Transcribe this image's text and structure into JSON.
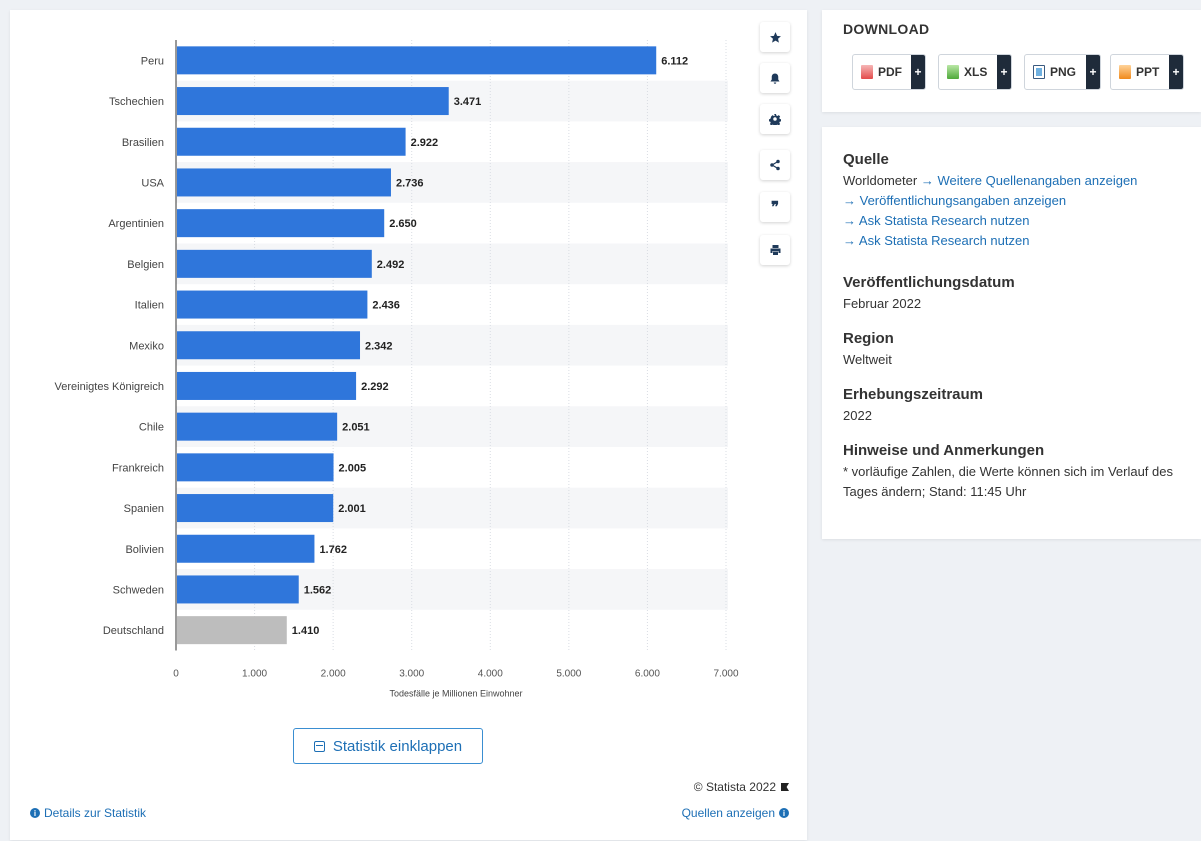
{
  "chart_data": {
    "type": "bar",
    "orientation": "horizontal",
    "categories": [
      "Peru",
      "Tschechien",
      "Brasilien",
      "USA",
      "Argentinien",
      "Belgien",
      "Italien",
      "Mexiko",
      "Vereinigtes Königreich",
      "Chile",
      "Frankreich",
      "Spanien",
      "Bolivien",
      "Schweden",
      "Deutschland"
    ],
    "values": [
      6112,
      3471,
      2922,
      2736,
      2650,
      2492,
      2436,
      2342,
      2292,
      2051,
      2005,
      2001,
      1762,
      1562,
      1410
    ],
    "value_labels": [
      "6.112",
      "3.471",
      "2.922",
      "2.736",
      "2.650",
      "2.492",
      "2.436",
      "2.342",
      "2.292",
      "2.051",
      "2.005",
      "2.001",
      "1.762",
      "1.562",
      "1.410"
    ],
    "highlight_category": "Deutschland",
    "colors": {
      "bar": "#2f76db",
      "highlight": "#bdbdbd"
    },
    "xlabel": "Todesfälle je Millionen Einwohner",
    "xlim": [
      0,
      7000
    ],
    "xticks": [
      0,
      1000,
      2000,
      3000,
      4000,
      5000,
      6000,
      7000
    ],
    "xtick_labels": [
      "0",
      "1.000",
      "2.000",
      "3.000",
      "4.000",
      "5.000",
      "6.000",
      "7.000"
    ],
    "grid": true
  },
  "actions": [
    {
      "icon": "star-icon"
    },
    {
      "icon": "bell-icon"
    },
    {
      "icon": "gear-icon"
    },
    {
      "icon": "share-icon"
    },
    {
      "icon": "quote-icon"
    },
    {
      "icon": "print-icon"
    }
  ],
  "collapse_button": "Statistik einklappen",
  "copyright": "© Statista 2022",
  "details_link": "Details zur Statistik",
  "sources_link": "Quellen anzeigen",
  "download": {
    "heading": "DOWNLOAD",
    "buttons": [
      {
        "label": "PDF",
        "icon": "pdf-icon"
      },
      {
        "label": "XLS",
        "icon": "xls-icon"
      },
      {
        "label": "PNG",
        "icon": "png-icon"
      },
      {
        "label": "PPT",
        "icon": "ppt-icon"
      }
    ],
    "plus": "+"
  },
  "info": {
    "source_heading": "Quelle",
    "source_name": "Worldometer",
    "source_link1": "Weitere Quellenangaben anzeigen",
    "source_link2": "Veröffentlichungsangaben anzeigen",
    "source_link3": "Ask Statista Research nutzen",
    "source_link4": "Ask Statista Research nutzen",
    "pub_heading": "Veröffentlichungsdatum",
    "pub_value": "Februar 2022",
    "region_heading": "Region",
    "region_value": "Weltweit",
    "period_heading": "Erhebungszeitraum",
    "period_value": "2022",
    "notes_heading": "Hinweise und Anmerkungen",
    "notes_value": "* vorläufige Zahlen, die Werte können sich im Verlauf des Tages ändern; Stand: 11:45 Uhr"
  }
}
